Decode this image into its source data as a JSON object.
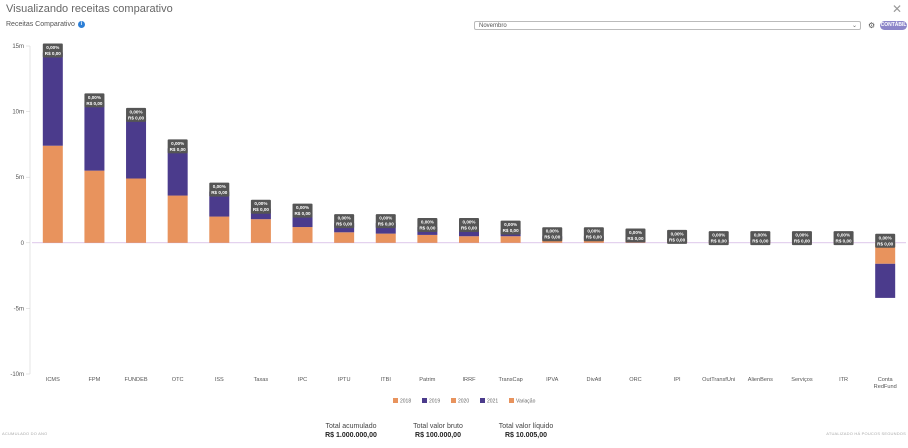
{
  "window": {
    "title": "Visualizando receitas comparativo"
  },
  "header": {
    "subtitle": "Receitas Comparativo",
    "select_value": "Novembro",
    "badge": "CONTÁBIL"
  },
  "colors": {
    "s2018": "#e8935d",
    "s2019": "#4b3b8c",
    "s2020": "#e8935d",
    "s2021": "#4b3b8c",
    "variacao": "#e8935d",
    "label_bg": "#555555",
    "zero_line": "#c9a6dd"
  },
  "chart_data": {
    "type": "bar",
    "ylim": [
      -10,
      15
    ],
    "yticks": [
      15,
      10,
      5,
      0,
      -5,
      -10
    ],
    "ytick_labels": [
      "15m",
      "10m",
      "5m",
      "0",
      "-5m",
      "-10m"
    ],
    "categories": [
      "ICMS",
      "FPM",
      "FUNDEB",
      "OTC",
      "ISS",
      "Taxas",
      "IPC",
      "IPTU",
      "ITBI",
      "Patrim",
      "IRRF",
      "TransCap",
      "IPVA",
      "DivAtl",
      "ORC",
      "IPI",
      "OutTransfUni",
      "AlienBens",
      "Servicos",
      "ITR",
      "Conta RedFund"
    ],
    "categories_display": [
      "ICMS",
      "FPM",
      "FUNDEB",
      "OTC",
      "ISS",
      "Taxas",
      "IPC",
      "IPTU",
      "ITBI",
      "Patrim",
      "IRRF",
      "TransCap",
      "IPVA",
      "DivAtl",
      "ORC",
      "IPI",
      "OutTransfUni",
      "AlienBens",
      "Serviços",
      "ITR",
      "Conta\nRedFund"
    ],
    "series": [
      {
        "name": "2018",
        "values": [
          7.4,
          5.5,
          4.9,
          3.6,
          2.0,
          1.8,
          1.2,
          0.8,
          0.7,
          0.6,
          0.5,
          0.5,
          0.3,
          0.3,
          0.2,
          0.2,
          0.1,
          0.1,
          0.1,
          0.1,
          -1.6
        ]
      },
      {
        "name": "2021",
        "values": [
          7.1,
          5.2,
          4.7,
          3.6,
          1.9,
          0.8,
          1.1,
          0.7,
          0.8,
          0.6,
          0.7,
          0.5,
          0.2,
          0.2,
          0.2,
          0.1,
          0.1,
          0.1,
          0.1,
          0.1,
          -2.6
        ]
      }
    ],
    "bar_labels": {
      "pct": "0,00%",
      "val": "R$ 0,00"
    },
    "legend": [
      "2018",
      "2019",
      "2020",
      "2021",
      "Variação"
    ],
    "legend_placement": "bottom-center"
  },
  "totals": [
    {
      "label": "Total acumulado",
      "value": "R$ 1.000.000,00"
    },
    {
      "label": "Total valor bruto",
      "value": "R$ 100.000,00"
    },
    {
      "label": "Total valor líquido",
      "value": "R$ 10.005,00"
    }
  ],
  "footer": {
    "left": "ACUMULADO DO ANO",
    "right": "ATUALIZADO HÁ POUCOS SEGUNDOS"
  }
}
